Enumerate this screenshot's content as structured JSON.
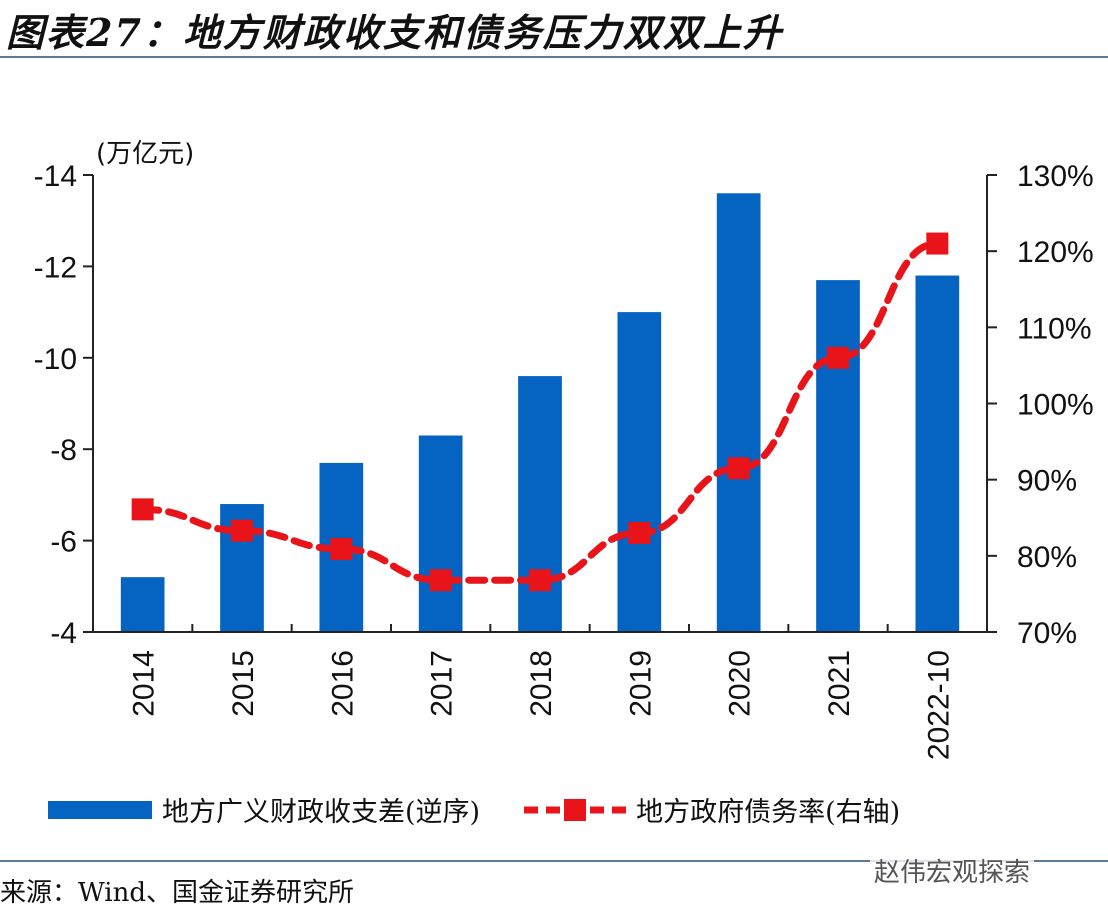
{
  "title": "图表27：地方财政收支和债务压力双双上升",
  "source": "来源：Wind、国金证券研究所",
  "watermark": "赵伟宏观探索",
  "colors": {
    "bar": "#0563c1",
    "line": "#e8141a",
    "axis": "#222222",
    "rule": "#5b7a95"
  },
  "chart_data": {
    "type": "bar+line",
    "title": "图表27：地方财政收支和债务压力双双上升",
    "categories": [
      "2014",
      "2015",
      "2016",
      "2017",
      "2018",
      "2019",
      "2020",
      "2021",
      "2022-10"
    ],
    "left_axis": {
      "label": "(万亿元)",
      "range": [
        -4,
        -14
      ],
      "inverted": true,
      "ticks": [
        "-14",
        "-12",
        "-10",
        "-8",
        "-6",
        "-4"
      ],
      "tick_values": [
        -14,
        -12,
        -10,
        -8,
        -6,
        -4
      ]
    },
    "right_axis": {
      "label": "",
      "range": [
        70,
        130
      ],
      "ticks": [
        "130%",
        "120%",
        "110%",
        "100%",
        "90%",
        "80%",
        "70%"
      ],
      "tick_values": [
        130,
        120,
        110,
        100,
        90,
        80,
        70
      ]
    },
    "series": [
      {
        "name": "地方广义财政收支差(逆序)",
        "type": "bar",
        "axis": "left",
        "values": [
          -5.2,
          -6.8,
          -7.7,
          -8.3,
          -9.6,
          -11.0,
          -13.6,
          -11.7,
          -11.8
        ]
      },
      {
        "name": "地方政府债务率(右轴)",
        "type": "line",
        "axis": "right",
        "style": "dashed",
        "marker": "square",
        "values": [
          86.1,
          83.3,
          80.9,
          76.8,
          76.8,
          83.0,
          91.5,
          106.0,
          121.0
        ]
      }
    ],
    "legend": {
      "position": "bottom"
    },
    "grid": false
  }
}
